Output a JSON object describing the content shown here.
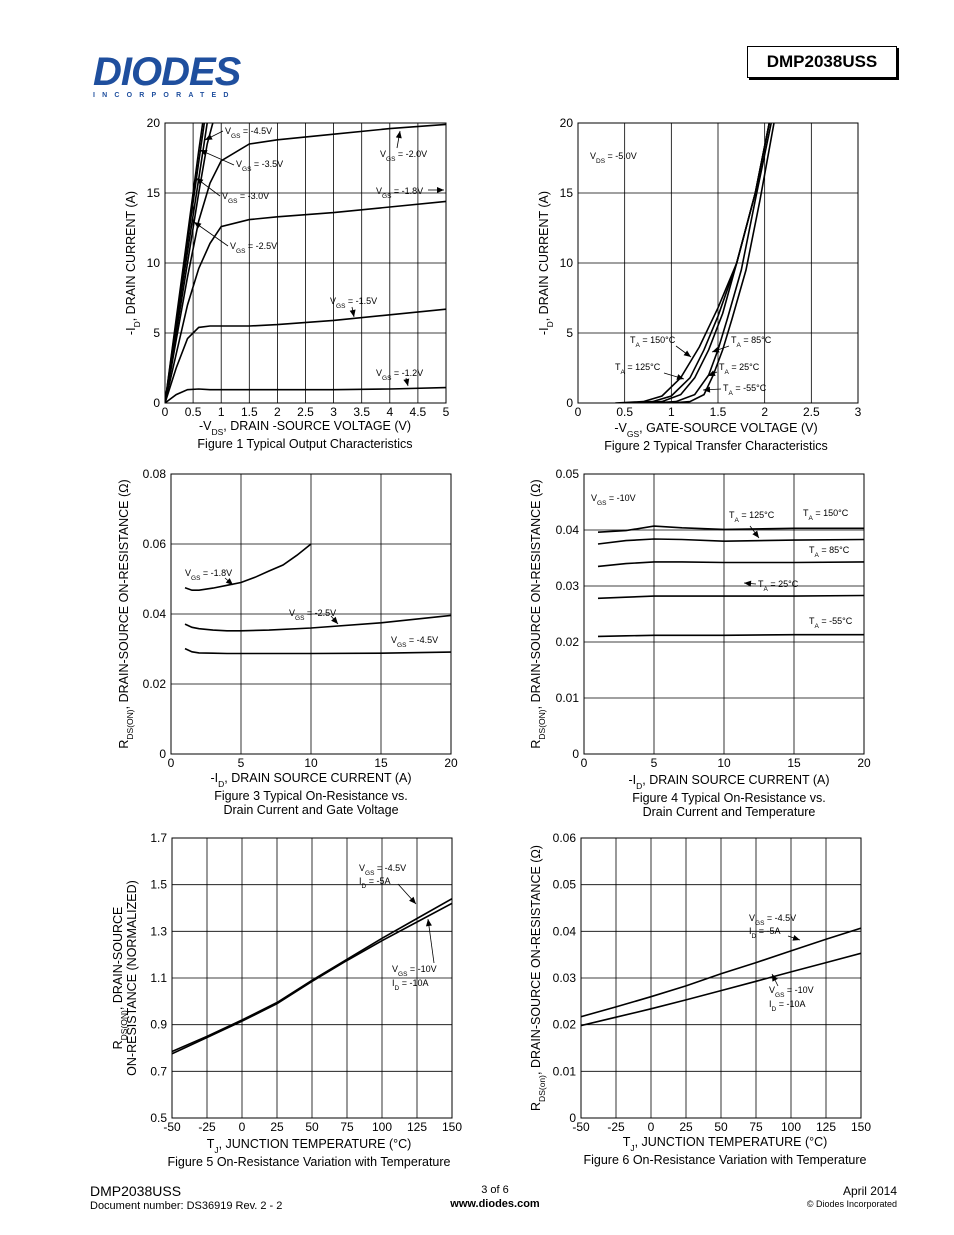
{
  "header": {
    "logo_text": "DIODES",
    "logo_sub": "INCORPORATED",
    "part_number": "DMP2038USS"
  },
  "footer": {
    "part_number": "DMP2038USS",
    "doc_number": "Document number: DS36919 Rev. 2 - 2",
    "page": "3 of 6",
    "website": "www.diodes.com",
    "date": "April 2014",
    "copyright": "© Diodes Incorporated"
  },
  "chart_data": [
    {
      "id": "fig1",
      "type": "line",
      "caption": "Figure 1 Typical Output Characteristics",
      "xlabel": "-VDS, DRAIN -SOURCE VOLTAGE (V)",
      "ylabel": "-ID, DRAIN CURRENT (A)",
      "xlim": [
        0,
        5
      ],
      "ylim": [
        0,
        20
      ],
      "xticks": [
        "0",
        "0.5",
        "1",
        "1.5",
        "2",
        "2.5",
        "3",
        "3.5",
        "4",
        "4.5",
        "5"
      ],
      "yticks": [
        "0",
        "5",
        "10",
        "15",
        "20"
      ],
      "series": [
        {
          "name": "VGS = -4.5V",
          "x": [
            0,
            0.2,
            0.4,
            0.6,
            0.67
          ],
          "y": [
            0,
            6,
            12,
            18,
            20
          ]
        },
        {
          "name": "VGS = -3.5V",
          "x": [
            0,
            0.2,
            0.4,
            0.6,
            0.7
          ],
          "y": [
            0,
            5.8,
            11.5,
            17.2,
            20
          ]
        },
        {
          "name": "VGS = -3.0V",
          "x": [
            0,
            0.2,
            0.4,
            0.6,
            0.75
          ],
          "y": [
            0,
            5.5,
            10.8,
            16,
            20
          ]
        },
        {
          "name": "VGS = -2.5V",
          "x": [
            0,
            0.2,
            0.4,
            0.6,
            0.75,
            0.85
          ],
          "y": [
            0,
            5,
            10,
            15,
            18.5,
            20
          ]
        },
        {
          "name": "VGS = -2.0V",
          "x": [
            0,
            0.2,
            0.4,
            0.6,
            0.8,
            1,
            1.5,
            2,
            3,
            4,
            5
          ],
          "y": [
            0,
            4.5,
            9,
            13,
            15.7,
            17.3,
            18.5,
            18.8,
            19.2,
            19.6,
            19.9
          ]
        },
        {
          "name": "VGS = -1.8V",
          "x": [
            0,
            0.2,
            0.4,
            0.6,
            0.8,
            1,
            1.5,
            2,
            3,
            4,
            5
          ],
          "y": [
            0,
            3.5,
            7,
            9.6,
            11.4,
            12.6,
            13.1,
            13.3,
            13.6,
            14,
            14.4
          ]
        },
        {
          "name": "VGS = -1.5V",
          "x": [
            0,
            0.2,
            0.4,
            0.6,
            0.8,
            1,
            1.5,
            2,
            3,
            4,
            5
          ],
          "y": [
            0,
            2.5,
            4.6,
            5.4,
            5.5,
            5.5,
            5.5,
            5.6,
            5.9,
            6.3,
            6.7
          ]
        },
        {
          "name": "VGS = -1.2V",
          "x": [
            0,
            0.2,
            0.4,
            0.6,
            0.8,
            1,
            2,
            3,
            4,
            5
          ],
          "y": [
            0,
            0.6,
            0.95,
            1.0,
            0.95,
            0.95,
            0.95,
            0.95,
            1.0,
            1.1
          ]
        }
      ],
      "annotations": [
        "VGS = -4.5V",
        "VGS = -3.5V",
        "VGS = -3.0V",
        "VGS = -2.5V",
        "VGS = -2.0V",
        "VGS = -1.8V",
        "VGS = -1.5V",
        "VGS = -1.2V"
      ]
    },
    {
      "id": "fig2",
      "type": "line",
      "caption": "Figure 2 Typical Transfer Characteristics",
      "xlabel": "-VGS, GATE-SOURCE VOLTAGE (V)",
      "ylabel": "-ID, DRAIN CURRENT (A)",
      "xlim": [
        0,
        3
      ],
      "ylim": [
        0,
        20
      ],
      "xticks": [
        "0",
        "0.5",
        "1",
        "1.5",
        "2",
        "2.5",
        "3"
      ],
      "yticks": [
        "0",
        "5",
        "10",
        "15",
        "20"
      ],
      "series": [
        {
          "name": "TA = 150°C",
          "x": [
            0.4,
            0.7,
            0.9,
            1.1,
            1.3,
            1.5,
            1.7,
            1.9,
            2.05
          ],
          "y": [
            0,
            0.1,
            0.5,
            1.8,
            4,
            6.8,
            10,
            15,
            20
          ]
        },
        {
          "name": "TA = 125°C",
          "x": [
            0.5,
            0.8,
            1.0,
            1.2,
            1.35,
            1.5,
            1.7,
            1.9,
            2.05
          ],
          "y": [
            0,
            0.1,
            0.5,
            1.8,
            3.8,
            6.2,
            10,
            15,
            20
          ]
        },
        {
          "name": "TA = 85°C",
          "x": [
            0.6,
            0.9,
            1.1,
            1.25,
            1.4,
            1.55,
            1.7,
            1.9,
            2.05
          ],
          "y": [
            0,
            0.1,
            0.6,
            1.8,
            3.8,
            6.4,
            10,
            15,
            20
          ]
        },
        {
          "name": "TA = 25°C",
          "x": [
            0.8,
            1.05,
            1.25,
            1.4,
            1.5,
            1.6,
            1.75,
            1.9,
            2.07
          ],
          "y": [
            0,
            0.1,
            0.6,
            2,
            3.8,
            6,
            9.5,
            14.5,
            20
          ]
        },
        {
          "name": "TA = -55°C",
          "x": [
            1.0,
            1.2,
            1.35,
            1.45,
            1.55,
            1.65,
            1.8,
            1.95,
            2.1
          ],
          "y": [
            0,
            0.1,
            0.6,
            2,
            3.8,
            6,
            9.5,
            14.5,
            20
          ]
        }
      ],
      "annotations": [
        "VDS = -5.0V",
        "TA = 150°C",
        "TA = 125°C",
        "TA = 85°C",
        "TA = 25°C",
        "TA = -55°C"
      ]
    },
    {
      "id": "fig3",
      "type": "line",
      "caption": "Figure 3 Typical On-Resistance vs.",
      "caption2": "Drain Current and Gate Voltage",
      "xlabel": "-ID, DRAIN SOURCE CURRENT (A)",
      "ylabel": "RDS(ON), DRAIN-SOURCE ON-RESISTANCE (Ω)",
      "xlim": [
        0,
        20
      ],
      "ylim": [
        0,
        0.08
      ],
      "xticks": [
        "0",
        "5",
        "10",
        "15",
        "20"
      ],
      "yticks": [
        "0",
        "0.02",
        "0.04",
        "0.06",
        "0.08"
      ],
      "series": [
        {
          "name": "VGS = -1.8V",
          "x": [
            1,
            1.5,
            2,
            3,
            4,
            5,
            6,
            7,
            8,
            9,
            10
          ],
          "y": [
            0.0475,
            0.0468,
            0.0468,
            0.0474,
            0.0482,
            0.049,
            0.0505,
            0.0523,
            0.054,
            0.0568,
            0.06
          ]
        },
        {
          "name": "VGS = -2.5V",
          "x": [
            1,
            1.5,
            2,
            3,
            4,
            5,
            7,
            10,
            15,
            20
          ],
          "y": [
            0.0371,
            0.0362,
            0.0358,
            0.0354,
            0.0352,
            0.0352,
            0.0354,
            0.036,
            0.0375,
            0.0396
          ]
        },
        {
          "name": "VGS = -4.5V",
          "x": [
            1,
            1.5,
            2,
            3,
            4,
            5,
            10,
            15,
            20
          ],
          "y": [
            0.0301,
            0.0292,
            0.0289,
            0.0288,
            0.0287,
            0.0287,
            0.0287,
            0.0288,
            0.0291
          ]
        }
      ],
      "annotations": [
        "VGS = -1.8V",
        "VGS = -2.5V",
        "VGS = -4.5V"
      ]
    },
    {
      "id": "fig4",
      "type": "line",
      "caption": "Figure 4 Typical On-Resistance vs.",
      "caption2": "Drain Current and Temperature",
      "xlabel": "-ID, DRAIN SOURCE CURRENT (A)",
      "ylabel": "RDS(ON), DRAIN-SOURCE ON-RESISTANCE (Ω)",
      "xlim": [
        0,
        20
      ],
      "ylim": [
        0,
        0.05
      ],
      "xticks": [
        "0",
        "5",
        "10",
        "15",
        "20"
      ],
      "yticks": [
        "0",
        "0.01",
        "0.02",
        "0.03",
        "0.04",
        "0.05"
      ],
      "series": [
        {
          "name": "TA = 150°C",
          "x": [
            1,
            3,
            5,
            7,
            10,
            15,
            20
          ],
          "y": [
            0.0396,
            0.0399,
            0.0407,
            0.0404,
            0.0401,
            0.0403,
            0.0403
          ]
        },
        {
          "name": "TA = 125°C",
          "x": [
            1,
            3,
            5,
            7,
            10,
            15,
            20
          ],
          "y": [
            0.0375,
            0.0381,
            0.0384,
            0.0383,
            0.038,
            0.0382,
            0.0383
          ]
        },
        {
          "name": "TA = 85°C",
          "x": [
            1,
            3,
            5,
            7,
            10,
            15,
            20
          ],
          "y": [
            0.0335,
            0.034,
            0.0343,
            0.0343,
            0.0342,
            0.0342,
            0.0343
          ]
        },
        {
          "name": "TA = 25°C",
          "x": [
            1,
            3,
            5,
            7,
            10,
            15,
            20
          ],
          "y": [
            0.0278,
            0.028,
            0.0282,
            0.0282,
            0.0282,
            0.0282,
            0.0283
          ]
        },
        {
          "name": "TA = -55°C",
          "x": [
            1,
            3,
            5,
            7,
            10,
            15,
            20
          ],
          "y": [
            0.021,
            0.0211,
            0.0212,
            0.0212,
            0.0212,
            0.0213,
            0.0213
          ]
        }
      ],
      "annotations": [
        "VGS = -10V",
        "TA = 125°C",
        "TA = 150°C",
        "TA = 85°C",
        "TA = 25°C",
        "TA = -55°C"
      ]
    },
    {
      "id": "fig5",
      "type": "line",
      "caption": "Figure 5 On-Resistance Variation with Temperature",
      "xlabel": "TJ, JUNCTION TEMPERATURE (°C)",
      "ylabel": "RDS(ON), DRAIN-SOURCE ON-RESISTANCE (NORMALIZED)",
      "xlim": [
        -50,
        150
      ],
      "ylim": [
        0.5,
        1.7
      ],
      "xticks": [
        "-50",
        "-25",
        "0",
        "25",
        "50",
        "75",
        "100",
        "125",
        "150"
      ],
      "yticks": [
        "0.5",
        "0.7",
        "0.9",
        "1.1",
        "1.3",
        "1.5",
        "1.7"
      ],
      "series": [
        {
          "name": "VGS = -4.5V, ID = -5A",
          "x": [
            -50,
            -25,
            0,
            25,
            50,
            75,
            100,
            125,
            150
          ],
          "y": [
            0.785,
            0.85,
            0.92,
            0.995,
            1.09,
            1.18,
            1.27,
            1.355,
            1.44
          ]
        },
        {
          "name": "VGS = -10V, ID = -10A",
          "x": [
            -50,
            -25,
            0,
            25,
            50,
            75,
            100,
            125,
            150
          ],
          "y": [
            0.775,
            0.845,
            0.915,
            0.99,
            1.085,
            1.175,
            1.26,
            1.34,
            1.42
          ]
        }
      ],
      "annotations": [
        "VGS = -4.5V",
        "ID = -5A",
        "VGS = -10V",
        "ID = -10A"
      ]
    },
    {
      "id": "fig6",
      "type": "line",
      "caption": "Figure 6 On-Resistance Variation with Temperature",
      "xlabel": "TJ, JUNCTION TEMPERATURE (°C)",
      "ylabel": "RDS(on), DRAIN-SOURCE ON-RESISTANCE (Ω)",
      "xlim": [
        -50,
        150
      ],
      "ylim": [
        0,
        0.06
      ],
      "xticks": [
        "-50",
        "-25",
        "0",
        "25",
        "50",
        "75",
        "100",
        "125",
        "150"
      ],
      "yticks": [
        "0",
        "0.01",
        "0.02",
        "0.03",
        "0.04",
        "0.05",
        "0.06"
      ],
      "series": [
        {
          "name": "VGS = -4.5V, ID = -5A",
          "x": [
            -50,
            -25,
            0,
            25,
            50,
            75,
            100,
            125,
            150
          ],
          "y": [
            0.0217,
            0.0238,
            0.026,
            0.0283,
            0.0309,
            0.0333,
            0.0358,
            0.0383,
            0.0407
          ]
        },
        {
          "name": "VGS = -10V, ID = -10A",
          "x": [
            -50,
            -25,
            0,
            25,
            50,
            75,
            100,
            125,
            150
          ],
          "y": [
            0.0198,
            0.0216,
            0.0234,
            0.0253,
            0.0273,
            0.0293,
            0.0313,
            0.0333,
            0.0353
          ]
        }
      ],
      "annotations": [
        "VGS = -4.5V",
        "ID = -5A",
        "VGS = -10V",
        "ID = -10A"
      ]
    }
  ]
}
